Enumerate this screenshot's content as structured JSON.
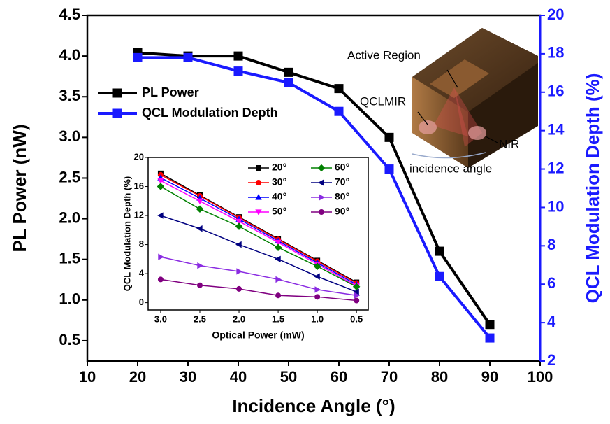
{
  "chart_data": [
    {
      "type": "line",
      "xlabel": "Incidence Angle (°)",
      "ylabel": "PL Power (nW)",
      "y2label": "QCL Modulation Depth (%)",
      "x": [
        20,
        30,
        40,
        50,
        60,
        70,
        80,
        90
      ],
      "xlim": [
        10,
        100
      ],
      "xticks": [
        10,
        20,
        30,
        40,
        50,
        60,
        70,
        80,
        90,
        100
      ],
      "ylim": [
        0.25,
        4.5
      ],
      "yticks": [
        0.5,
        {
          "value": 1,
          "label": "1.0"
        },
        1.5,
        {
          "value": 2,
          "label": "2.0"
        },
        2.5,
        {
          "value": 3,
          "label": "3.0"
        },
        3.5,
        {
          "value": 4,
          "label": "4.0"
        },
        4.5
      ],
      "y2lim": [
        2,
        20
      ],
      "y2ticks": [
        2,
        4,
        6,
        8,
        10,
        12,
        14,
        16,
        18,
        20
      ],
      "y2color": "#1a1aff",
      "series": [
        {
          "name": "PL Power",
          "color": "#000000",
          "marker": "square",
          "values": [
            4.04,
            4.0,
            4.0,
            3.8,
            3.6,
            3.0,
            1.6,
            0.7
          ]
        },
        {
          "name": "QCL Modulation Depth",
          "color": "#1a1aff",
          "marker": "square",
          "axis": "y2",
          "values": [
            17.8,
            17.8,
            17.1,
            16.5,
            15.0,
            12.0,
            6.4,
            3.2
          ]
        }
      ],
      "annotations": [
        "Active Region",
        "QCLMIR",
        "NIR",
        "incidence angle"
      ]
    },
    {
      "type": "line",
      "xlabel": "Optical Power (mW)",
      "ylabel": "QCL Modulation Depth (%)",
      "x": [
        3,
        2.5,
        2,
        1.5,
        1,
        0.5
      ],
      "xlim": [
        3.16,
        0.35
      ],
      "xticks": [
        {
          "value": 3,
          "label": "3.0"
        },
        2.5,
        {
          "value": 2,
          "label": "2.0"
        },
        1.5,
        {
          "value": 1,
          "label": "1.0"
        },
        0.5
      ],
      "ylim": [
        -1,
        20
      ],
      "yticks": [
        0,
        4,
        8,
        12,
        16,
        20
      ],
      "series": [
        {
          "name": "20°",
          "color": "#000000",
          "marker": "square",
          "values": [
            17.8,
            14.8,
            11.8,
            8.8,
            5.8,
            2.8
          ]
        },
        {
          "name": "30°",
          "color": "#ff0000",
          "marker": "circle",
          "values": [
            17.6,
            14.7,
            11.7,
            8.7,
            5.7,
            2.7
          ]
        },
        {
          "name": "40°",
          "color": "#0000ff",
          "marker": "triangle-up",
          "values": [
            17.2,
            14.4,
            11.5,
            8.5,
            5.5,
            2.5
          ]
        },
        {
          "name": "50°",
          "color": "#ff00ff",
          "marker": "triangle-down",
          "values": [
            16.8,
            14.0,
            11.2,
            8.3,
            5.3,
            2.3
          ]
        },
        {
          "name": "60°",
          "color": "#008000",
          "marker": "diamond",
          "values": [
            16.0,
            12.9,
            10.5,
            7.6,
            5.0,
            2.2
          ]
        },
        {
          "name": "70°",
          "color": "#000080",
          "marker": "triangle-left",
          "values": [
            12.0,
            10.2,
            8.0,
            6.0,
            3.6,
            1.5
          ]
        },
        {
          "name": "80°",
          "color": "#8a2be2",
          "marker": "triangle-right",
          "values": [
            6.3,
            5.1,
            4.3,
            3.2,
            1.8,
            1.0
          ]
        },
        {
          "name": "90°",
          "color": "#800080",
          "marker": "circle",
          "values": [
            3.2,
            2.4,
            1.9,
            1.0,
            0.8,
            0.3
          ]
        }
      ]
    }
  ]
}
